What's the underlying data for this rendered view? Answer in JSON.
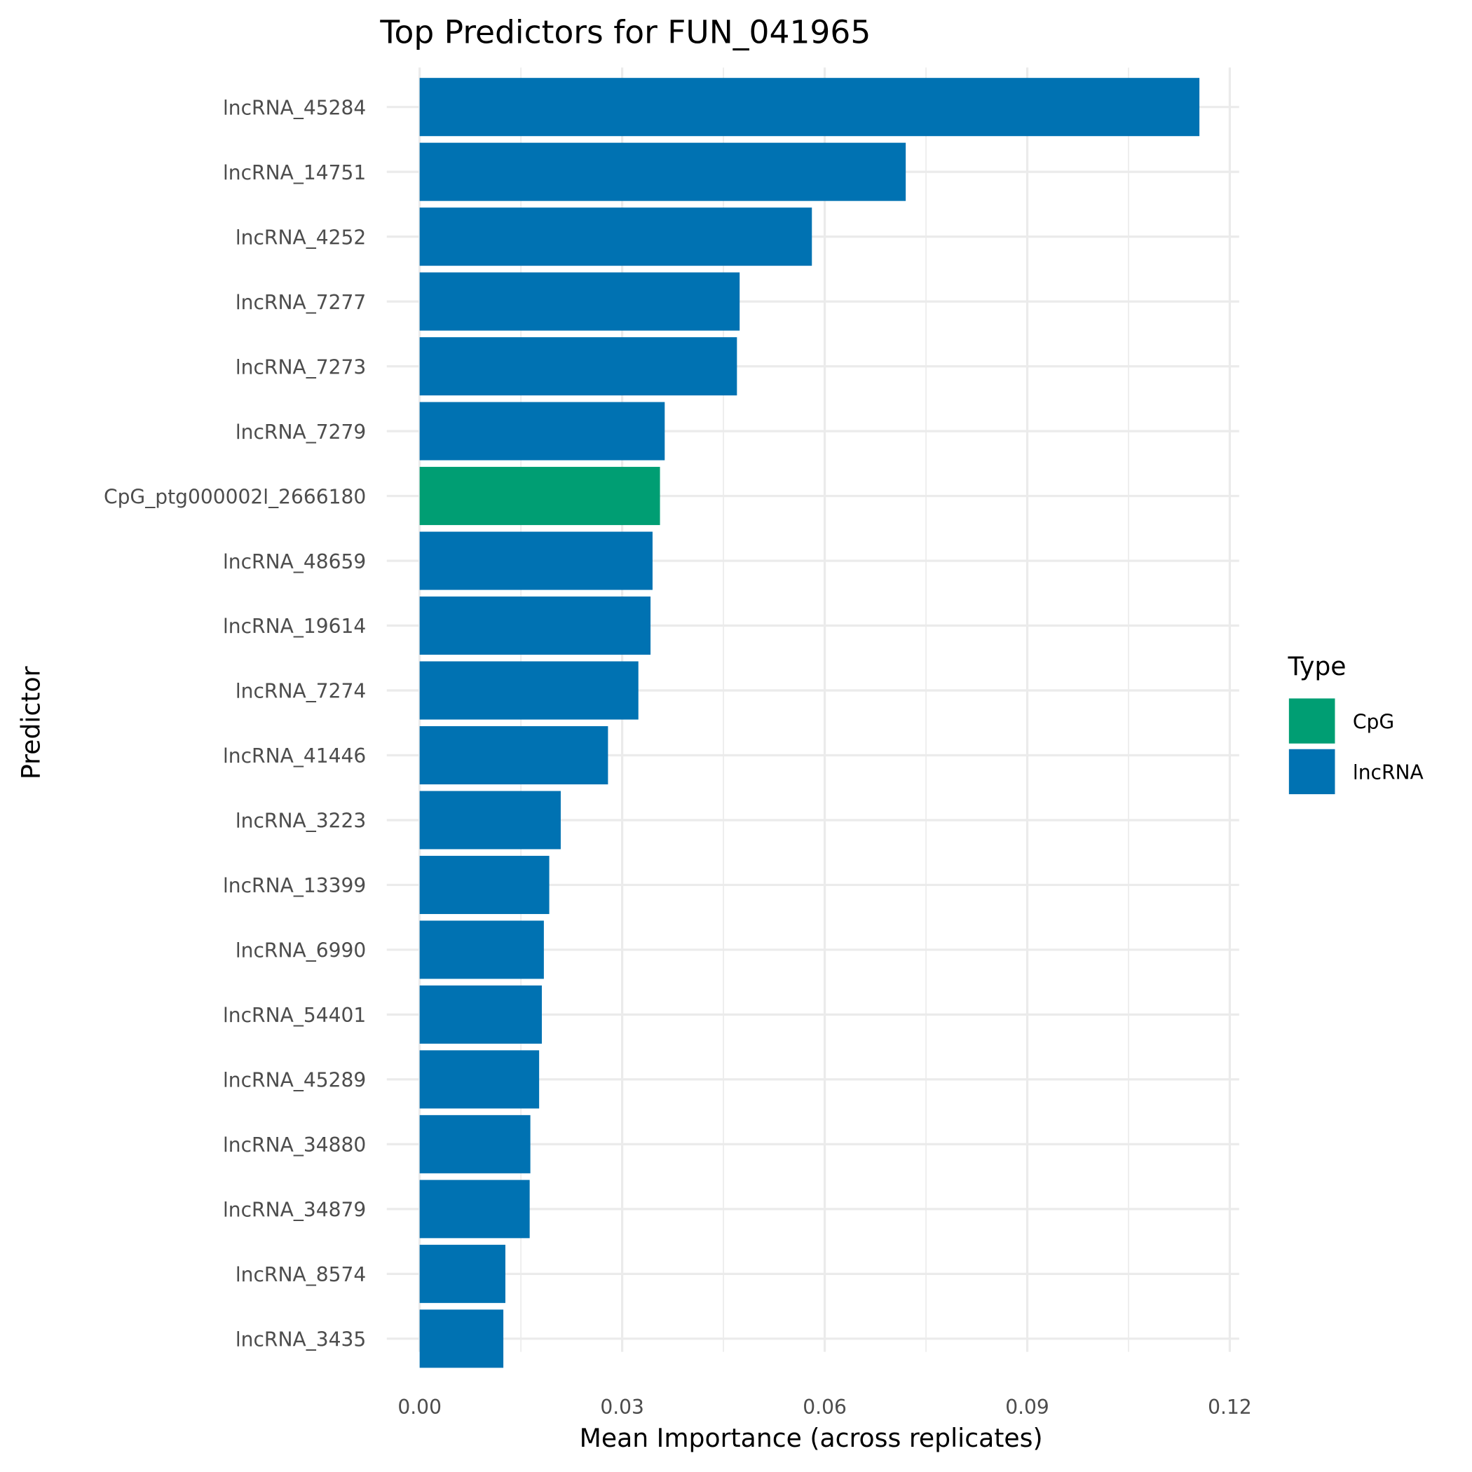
{
  "chart_data": {
    "type": "bar",
    "orientation": "horizontal",
    "title": "Top Predictors for FUN_041965",
    "xlabel": "Mean Importance (across replicates)",
    "ylabel": "Predictor",
    "xlim": [
      0,
      0.12
    ],
    "xticks": [
      "0.00",
      "0.03",
      "0.06",
      "0.09",
      "0.12"
    ],
    "grid": true,
    "legend": {
      "title": "Type",
      "placement": "right",
      "entries": [
        {
          "label": "CpG",
          "color": "#009E73"
        },
        {
          "label": "lncRNA",
          "color": "#0072B2"
        }
      ]
    },
    "categories": [
      "lncRNA_45284",
      "lncRNA_14751",
      "lncRNA_4252",
      "lncRNA_7277",
      "lncRNA_7273",
      "lncRNA_7279",
      "CpG_ptg000002l_2666180",
      "lncRNA_48659",
      "lncRNA_19614",
      "lncRNA_7274",
      "lncRNA_41446",
      "lncRNA_3223",
      "lncRNA_13399",
      "lncRNA_6990",
      "lncRNA_54401",
      "lncRNA_45289",
      "lncRNA_34880",
      "lncRNA_34879",
      "lncRNA_8574",
      "lncRNA_3435"
    ],
    "types": [
      "lncRNA",
      "lncRNA",
      "lncRNA",
      "lncRNA",
      "lncRNA",
      "lncRNA",
      "CpG",
      "lncRNA",
      "lncRNA",
      "lncRNA",
      "lncRNA",
      "lncRNA",
      "lncRNA",
      "lncRNA",
      "lncRNA",
      "lncRNA",
      "lncRNA",
      "lncRNA",
      "lncRNA",
      "lncRNA"
    ],
    "values": [
      0.1155,
      0.072,
      0.0581,
      0.0474,
      0.047,
      0.0363,
      0.0356,
      0.0345,
      0.0342,
      0.0324,
      0.0279,
      0.0209,
      0.0192,
      0.0184,
      0.0181,
      0.0177,
      0.0164,
      0.0163,
      0.0127,
      0.0124
    ]
  }
}
